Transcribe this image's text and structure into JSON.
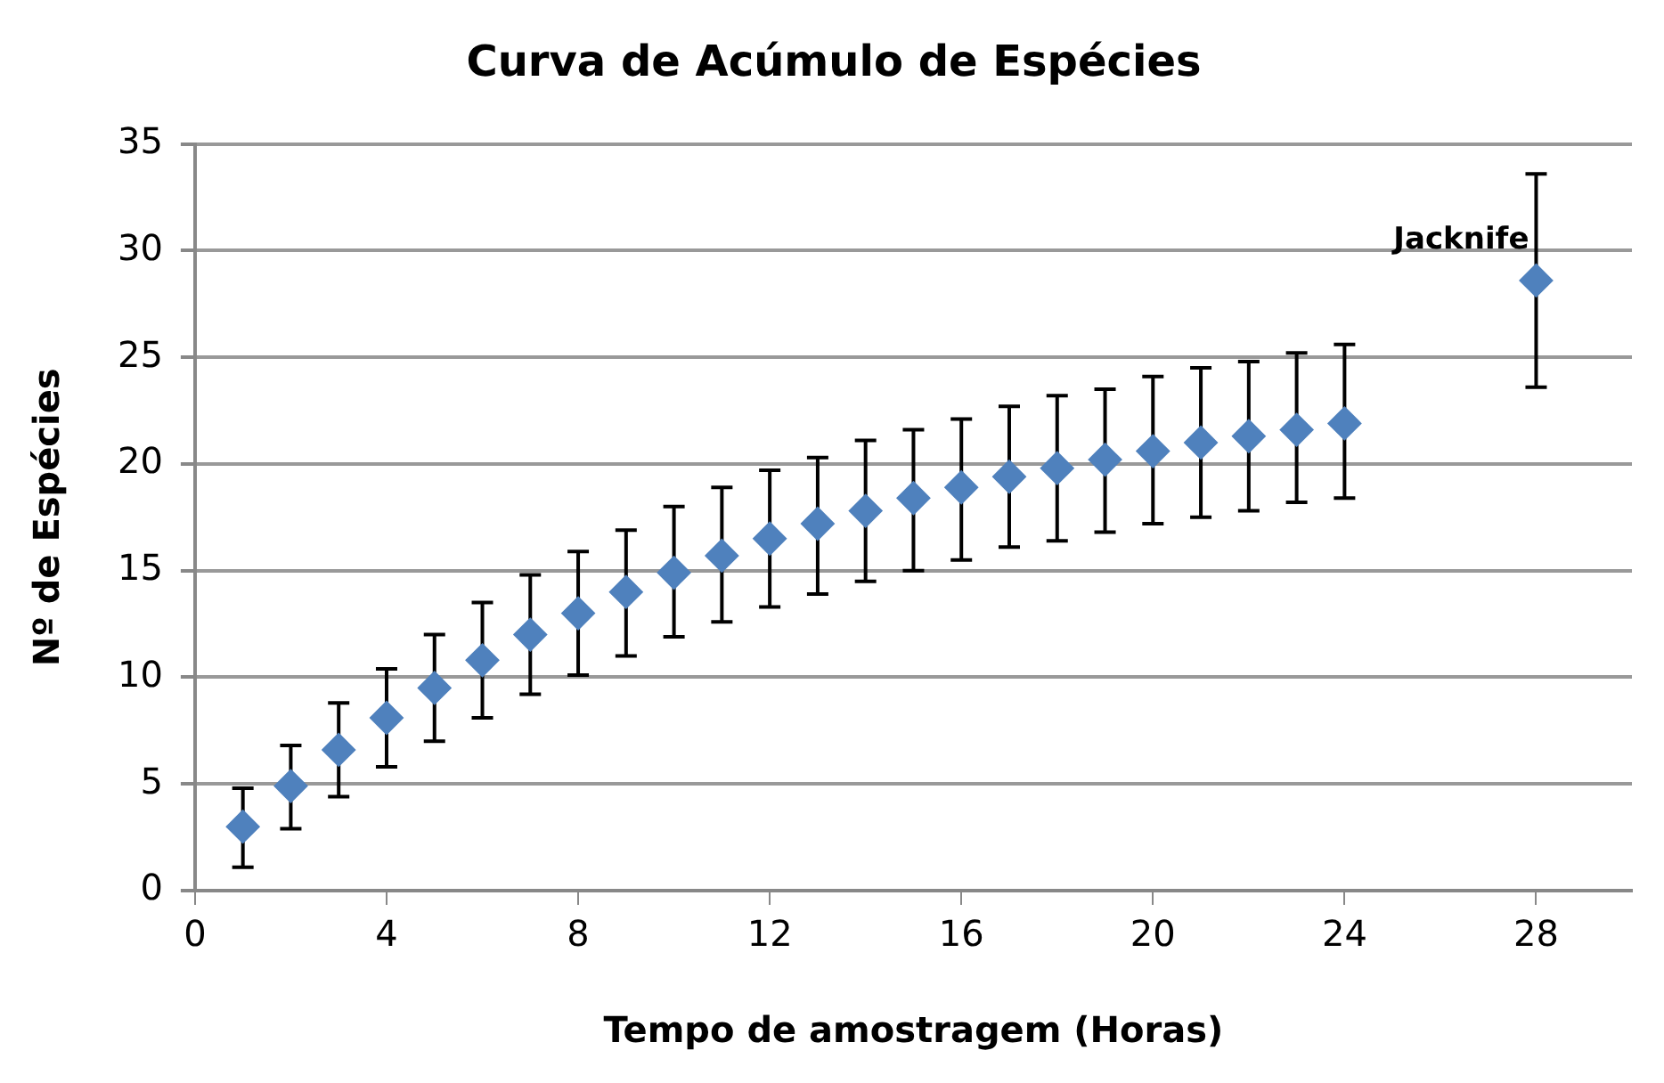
{
  "chart_data": {
    "type": "scatter",
    "title": "Curva de Acúmulo de Espécies",
    "xlabel": "Tempo de amostragem (Horas)",
    "ylabel": "Nº de Espécies",
    "x": [
      1,
      2,
      3,
      4,
      5,
      6,
      7,
      8,
      9,
      10,
      11,
      12,
      13,
      14,
      15,
      16,
      17,
      18,
      19,
      20,
      21,
      22,
      23,
      24,
      28
    ],
    "series": [
      {
        "color": "#4f81bd",
        "values": [
          3.0,
          4.9,
          6.6,
          8.1,
          9.5,
          10.8,
          12.0,
          13.0,
          14.0,
          14.9,
          15.7,
          16.5,
          17.2,
          17.8,
          18.4,
          18.9,
          19.4,
          19.8,
          20.2,
          20.6,
          21.0,
          21.3,
          21.6,
          21.9,
          28.6
        ],
        "errors": [
          [
            1.1,
            4.8
          ],
          [
            2.9,
            6.8
          ],
          [
            4.4,
            8.8
          ],
          [
            5.8,
            10.4
          ],
          [
            7.0,
            12.0
          ],
          [
            8.1,
            13.5
          ],
          [
            9.2,
            14.8
          ],
          [
            10.1,
            15.9
          ],
          [
            11.0,
            16.9
          ],
          [
            11.9,
            18.0
          ],
          [
            12.6,
            18.9
          ],
          [
            13.3,
            19.7
          ],
          [
            13.9,
            20.3
          ],
          [
            14.5,
            21.1
          ],
          [
            15.0,
            21.6
          ],
          [
            15.5,
            22.1
          ],
          [
            16.1,
            22.7
          ],
          [
            16.4,
            23.2
          ],
          [
            16.8,
            23.5
          ],
          [
            17.2,
            24.1
          ],
          [
            17.5,
            24.5
          ],
          [
            17.8,
            24.8
          ],
          [
            18.2,
            25.2
          ],
          [
            18.4,
            25.6
          ],
          [
            23.6,
            33.6
          ]
        ]
      }
    ],
    "annotations": [
      {
        "text": "Jacknife",
        "x": 28,
        "y": 28.6
      }
    ],
    "xlim": [
      0,
      30
    ],
    "xticks": [
      0,
      4,
      8,
      12,
      16,
      20,
      24,
      28
    ],
    "ylim": [
      0,
      35
    ],
    "yticks": [
      0,
      5,
      10,
      15,
      20,
      25,
      30,
      35
    ],
    "grid": "y",
    "marker": "diamond"
  }
}
